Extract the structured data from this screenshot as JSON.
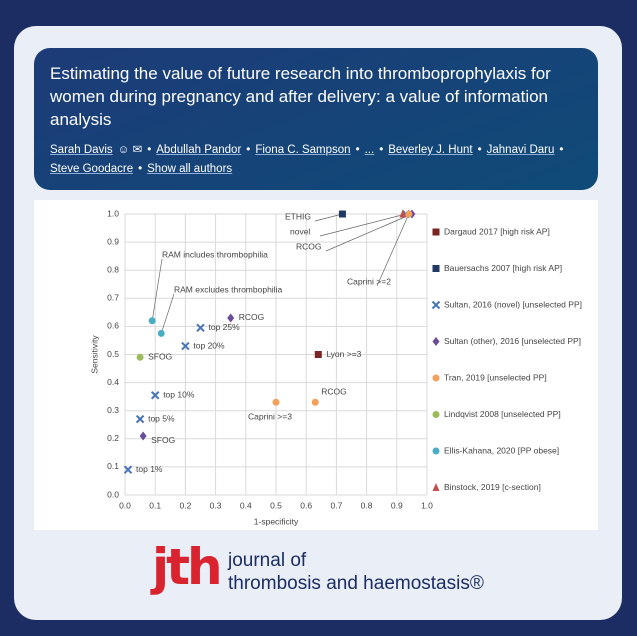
{
  "header": {
    "title": "Estimating the value of future research into thromboprophylaxis for women during pregnancy and after delivery: a value of information analysis",
    "authors": [
      "Sarah Davis",
      "Abdullah Pandor",
      "Fiona C. Sampson",
      "...",
      "Beverley J. Hunt",
      "Jahnavi Daru",
      "Steve Goodacre"
    ],
    "show_all": "Show all authors"
  },
  "chart_data": {
    "type": "scatter",
    "x_label": "1-specificity",
    "y_label": "Sensitivity",
    "xlim": [
      0,
      1
    ],
    "ylim": [
      0,
      1
    ],
    "grid": true,
    "legend": "right",
    "xticks": [
      {
        "value": 0,
        "label": "0.0"
      },
      0.1,
      0.2,
      0.3,
      0.4,
      0.5,
      0.6,
      0.7,
      0.8,
      0.9,
      {
        "value": 1,
        "label": "1.0"
      }
    ],
    "yticks": [
      {
        "value": 0,
        "label": "0.0"
      },
      0.1,
      0.2,
      0.3,
      0.4,
      0.5,
      0.6,
      0.7,
      0.8,
      0.9,
      {
        "value": 1,
        "label": "1.0"
      }
    ],
    "series": [
      {
        "name": "Dargaud 2017 [high risk AP]",
        "color": "#7b2424",
        "marker": "square",
        "x": [
          0.64
        ],
        "values": [
          0.5
        ],
        "point_labels": [
          "Lyon >=3"
        ]
      },
      {
        "name": "Bauersachs 2007 [high risk AP]",
        "color": "#1f3864",
        "marker": "square",
        "x": [
          0.72
        ],
        "values": [
          1.0
        ],
        "point_labels": [
          "ETHIG"
        ]
      },
      {
        "name": "Sultan, 2016 (novel) [unselected PP]",
        "color": "#4a74b5",
        "marker": "x",
        "x": [
          0.01,
          0.05,
          0.1,
          0.2,
          0.25,
          0.93
        ],
        "values": [
          0.09,
          0.27,
          0.355,
          0.53,
          0.595,
          1.0
        ],
        "point_labels": [
          "top 1%",
          "top 5%",
          "top 10%",
          "top 20%",
          "top 25%",
          "novel"
        ]
      },
      {
        "name": "Sultan (other), 2016 [unselected PP]",
        "color": "#6b4c9a",
        "marker": "diamond",
        "x": [
          0.06,
          0.35,
          0.95
        ],
        "values": [
          0.21,
          0.63,
          1.0
        ],
        "point_labels": [
          "SFOG",
          "RCOG",
          "RCOG"
        ]
      },
      {
        "name": "Tran, 2019 [unselected PP]",
        "color": "#f2a05a",
        "marker": "circle",
        "x": [
          0.5,
          0.63,
          0.94
        ],
        "values": [
          0.33,
          0.33,
          1.0
        ],
        "point_labels": [
          "Caprini >=3",
          "RCOG",
          "Caprini >=2"
        ]
      },
      {
        "name": "Lindqvist 2008 [unselected PP]",
        "color": "#9bbb59",
        "marker": "circle",
        "x": [
          0.05
        ],
        "values": [
          0.49
        ],
        "point_labels": [
          "SFOG"
        ]
      },
      {
        "name": "Ellis-Kahana, 2020 [PP obese]",
        "color": "#4bacc6",
        "marker": "circle",
        "x": [
          0.09,
          0.12
        ],
        "values": [
          0.62,
          0.575
        ],
        "point_labels": [
          "RAM includes thrombophilia",
          "RAM excludes thrombophilia"
        ]
      },
      {
        "name": "Binstock, 2019 [c-section]",
        "color": "#c0504d",
        "marker": "triangle",
        "x": [
          0.92
        ],
        "values": [
          1.0
        ],
        "point_labels": [
          null
        ]
      }
    ]
  },
  "logo": {
    "mark": "jth",
    "line1": "journal of",
    "line2": "thrombosis and haemostasis®"
  }
}
